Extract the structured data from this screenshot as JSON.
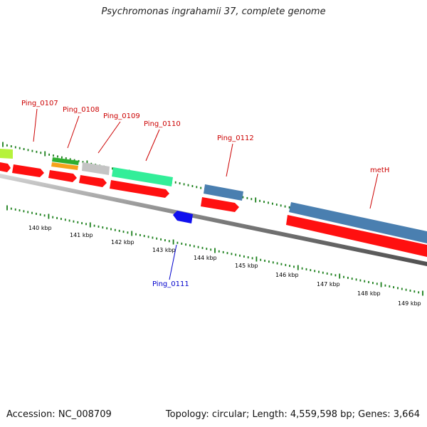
{
  "title": "Psychromonas ingrahamii 37, complete genome",
  "footer": {
    "accession": "Accession: NC_008709",
    "summary": "Topology: circular; Length: 4,559,598 bp; Genes: 3,664"
  },
  "colors": {
    "backbone": "#8a8a8a",
    "tick": "#1b7f1b",
    "cds_forward": "#ff1010",
    "cds_reverse": "#1010ee",
    "label_forward": "#cc0000",
    "label_reverse": "#0000cc",
    "steelblue": "#4a7fb0",
    "aquamarine": "#33ee99",
    "lightgray": "#c4c4c4",
    "lime": "#b6f23c",
    "orange": "#f6a21a",
    "green": "#2fae2f"
  },
  "scale": {
    "unit": "kbp",
    "labels": [
      "140 kbp",
      "141 kbp",
      "142 kbp",
      "143 kbp",
      "144 kbp",
      "145 kbp",
      "146 kbp",
      "147 kbp",
      "148 kbp",
      "149 kbp"
    ]
  },
  "gene_labels": [
    {
      "name": "Ping_0107",
      "strand": "forward"
    },
    {
      "name": "Ping_0108",
      "strand": "forward"
    },
    {
      "name": "Ping_0109",
      "strand": "forward"
    },
    {
      "name": "Ping_0110",
      "strand": "forward"
    },
    {
      "name": "Ping_0111",
      "strand": "reverse"
    },
    {
      "name": "Ping_0112",
      "strand": "forward"
    },
    {
      "name": "metH",
      "strand": "forward"
    }
  ]
}
